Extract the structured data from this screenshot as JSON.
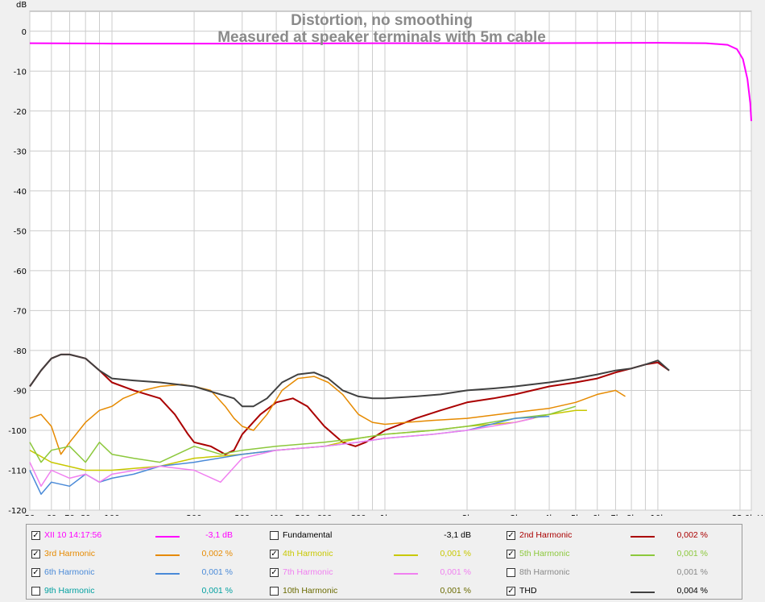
{
  "chart_data": {
    "type": "line",
    "title": "Distortion, no smoothing",
    "subtitle": "Measured at speaker terminals with 5m cable",
    "ylabel": "dB",
    "xunit": "Hz",
    "xscale": "log",
    "xlim": [
      50,
      22000
    ],
    "ylim": [
      -120,
      5
    ],
    "grid": true,
    "y_ticks": [
      {
        "v": 0,
        "label": "0"
      },
      {
        "v": -10,
        "label": "-10"
      },
      {
        "v": -20,
        "label": "-20"
      },
      {
        "v": -30,
        "label": "-30"
      },
      {
        "v": -40,
        "label": "-40"
      },
      {
        "v": -50,
        "label": "-50"
      },
      {
        "v": -60,
        "label": "-60"
      },
      {
        "v": -70,
        "label": "-70"
      },
      {
        "v": -80,
        "label": "-80"
      },
      {
        "v": -90,
        "label": "-90"
      },
      {
        "v": -100,
        "label": "-100"
      },
      {
        "v": -110,
        "label": "-110"
      },
      {
        "v": -120,
        "label": "-120"
      }
    ],
    "x_ticks": [
      {
        "v": 50,
        "label": "50"
      },
      {
        "v": 60,
        "label": "60"
      },
      {
        "v": 70,
        "label": "70"
      },
      {
        "v": 80,
        "label": "80"
      },
      {
        "v": 100,
        "label": "100"
      },
      {
        "v": 200,
        "label": "200"
      },
      {
        "v": 300,
        "label": "300"
      },
      {
        "v": 400,
        "label": "400"
      },
      {
        "v": 500,
        "label": "500"
      },
      {
        "v": 600,
        "label": "600"
      },
      {
        "v": 800,
        "label": "800"
      },
      {
        "v": 1000,
        "label": "1k"
      },
      {
        "v": 2000,
        "label": "2k"
      },
      {
        "v": 3000,
        "label": "3k"
      },
      {
        "v": 4000,
        "label": "4k"
      },
      {
        "v": 5000,
        "label": "5k"
      },
      {
        "v": 6000,
        "label": "6k"
      },
      {
        "v": 7000,
        "label": "7k"
      },
      {
        "v": 8000,
        "label": "8k"
      },
      {
        "v": 10000,
        "label": "10k"
      },
      {
        "v": 22000,
        "label": "22,0k Hz"
      }
    ],
    "minor_x": [
      90,
      900,
      9000,
      20000
    ],
    "series": [
      {
        "name": "XII 10 14:17:56",
        "color": "#ff00ff",
        "width": 2,
        "points": [
          [
            50,
            -3.0
          ],
          [
            100,
            -3.1
          ],
          [
            300,
            -3.1
          ],
          [
            1000,
            -3.0
          ],
          [
            3000,
            -3.0
          ],
          [
            10000,
            -2.9
          ],
          [
            15000,
            -3.0
          ],
          [
            18000,
            -3.4
          ],
          [
            19500,
            -4.5
          ],
          [
            20500,
            -7
          ],
          [
            21300,
            -12
          ],
          [
            21800,
            -18
          ],
          [
            22000,
            -22.5
          ]
        ]
      },
      {
        "name": "2nd Harmonic",
        "color": "#aa0000",
        "width": 2,
        "points": [
          [
            50,
            -89
          ],
          [
            55,
            -85
          ],
          [
            60,
            -82
          ],
          [
            65,
            -81
          ],
          [
            70,
            -81
          ],
          [
            80,
            -82
          ],
          [
            90,
            -85
          ],
          [
            100,
            -88
          ],
          [
            120,
            -90
          ],
          [
            150,
            -92
          ],
          [
            170,
            -96
          ],
          [
            190,
            -101
          ],
          [
            200,
            -103
          ],
          [
            230,
            -104
          ],
          [
            260,
            -106
          ],
          [
            280,
            -105
          ],
          [
            300,
            -101
          ],
          [
            350,
            -96
          ],
          [
            400,
            -93
          ],
          [
            460,
            -92
          ],
          [
            520,
            -94
          ],
          [
            600,
            -99
          ],
          [
            700,
            -103
          ],
          [
            780,
            -104
          ],
          [
            850,
            -103
          ],
          [
            1000,
            -100
          ],
          [
            1300,
            -97
          ],
          [
            1600,
            -95
          ],
          [
            2000,
            -93
          ],
          [
            2500,
            -92
          ],
          [
            3000,
            -91
          ],
          [
            4000,
            -89
          ],
          [
            5000,
            -88
          ],
          [
            6000,
            -87
          ],
          [
            7000,
            -85.5
          ],
          [
            8000,
            -84.5
          ],
          [
            9000,
            -83.5
          ],
          [
            10000,
            -83
          ],
          [
            11000,
            -85
          ]
        ]
      },
      {
        "name": "3rd Harmonic",
        "color": "#e68a00",
        "width": 1.5,
        "points": [
          [
            50,
            -97
          ],
          [
            55,
            -96
          ],
          [
            60,
            -99
          ],
          [
            65,
            -106
          ],
          [
            70,
            -103
          ],
          [
            80,
            -98
          ],
          [
            90,
            -95
          ],
          [
            100,
            -94
          ],
          [
            110,
            -92
          ],
          [
            130,
            -90
          ],
          [
            150,
            -89
          ],
          [
            180,
            -88.5
          ],
          [
            200,
            -89
          ],
          [
            230,
            -90
          ],
          [
            260,
            -94
          ],
          [
            280,
            -97
          ],
          [
            300,
            -99
          ],
          [
            330,
            -100
          ],
          [
            370,
            -96
          ],
          [
            420,
            -90
          ],
          [
            480,
            -87
          ],
          [
            550,
            -86.5
          ],
          [
            620,
            -88
          ],
          [
            700,
            -91
          ],
          [
            800,
            -96
          ],
          [
            900,
            -98
          ],
          [
            1000,
            -98.5
          ],
          [
            1200,
            -98
          ],
          [
            1500,
            -97.5
          ],
          [
            2000,
            -97
          ],
          [
            3000,
            -95.5
          ],
          [
            4000,
            -94.5
          ],
          [
            5000,
            -93
          ],
          [
            6000,
            -91
          ],
          [
            7000,
            -90
          ],
          [
            7600,
            -91.5
          ]
        ]
      },
      {
        "name": "4th Harmonic",
        "color": "#c8c800",
        "width": 1.5,
        "points": [
          [
            50,
            -105
          ],
          [
            60,
            -108
          ],
          [
            80,
            -110
          ],
          [
            100,
            -110
          ],
          [
            150,
            -109
          ],
          [
            200,
            -107
          ],
          [
            300,
            -106
          ],
          [
            400,
            -105
          ],
          [
            600,
            -104
          ],
          [
            800,
            -102
          ],
          [
            1000,
            -101
          ],
          [
            1500,
            -100
          ],
          [
            2000,
            -99
          ],
          [
            3000,
            -98
          ],
          [
            4000,
            -96
          ],
          [
            5000,
            -95
          ],
          [
            5500,
            -95
          ]
        ]
      },
      {
        "name": "5th Harmonic",
        "color": "#8cc83c",
        "width": 1.5,
        "points": [
          [
            50,
            -103
          ],
          [
            55,
            -108
          ],
          [
            60,
            -105
          ],
          [
            70,
            -104
          ],
          [
            80,
            -108
          ],
          [
            90,
            -103
          ],
          [
            100,
            -106
          ],
          [
            120,
            -107
          ],
          [
            150,
            -108
          ],
          [
            200,
            -104
          ],
          [
            250,
            -106
          ],
          [
            300,
            -105
          ],
          [
            400,
            -104
          ],
          [
            600,
            -103
          ],
          [
            800,
            -102
          ],
          [
            1000,
            -101
          ],
          [
            1500,
            -100
          ],
          [
            2000,
            -99
          ],
          [
            3000,
            -97
          ],
          [
            4000,
            -96
          ],
          [
            5000,
            -94
          ]
        ]
      },
      {
        "name": "6th Harmonic",
        "color": "#4a8ad8",
        "width": 1.5,
        "points": [
          [
            50,
            -110
          ],
          [
            55,
            -116
          ],
          [
            60,
            -113
          ],
          [
            70,
            -114
          ],
          [
            80,
            -111
          ],
          [
            90,
            -113
          ],
          [
            100,
            -112
          ],
          [
            120,
            -111
          ],
          [
            150,
            -109
          ],
          [
            200,
            -108
          ],
          [
            300,
            -106
          ],
          [
            400,
            -105
          ],
          [
            600,
            -104
          ],
          [
            800,
            -103
          ],
          [
            1000,
            -102
          ],
          [
            1500,
            -101
          ],
          [
            2000,
            -100
          ],
          [
            3000,
            -97
          ],
          [
            4000,
            -96.5
          ]
        ]
      },
      {
        "name": "7th Harmonic",
        "color": "#f080f0",
        "width": 1.5,
        "points": [
          [
            50,
            -108
          ],
          [
            55,
            -114
          ],
          [
            60,
            -110
          ],
          [
            70,
            -112
          ],
          [
            80,
            -111
          ],
          [
            90,
            -113
          ],
          [
            100,
            -111
          ],
          [
            150,
            -109
          ],
          [
            200,
            -110
          ],
          [
            250,
            -113
          ],
          [
            300,
            -107
          ],
          [
            400,
            -105
          ],
          [
            600,
            -104
          ],
          [
            800,
            -103
          ],
          [
            1000,
            -102
          ],
          [
            1500,
            -101
          ],
          [
            2000,
            -100
          ],
          [
            3000,
            -98
          ],
          [
            3500,
            -97
          ]
        ]
      },
      {
        "name": "THD",
        "color": "#404040",
        "width": 2,
        "points": [
          [
            50,
            -89
          ],
          [
            55,
            -85
          ],
          [
            60,
            -82
          ],
          [
            65,
            -81
          ],
          [
            70,
            -81
          ],
          [
            80,
            -82
          ],
          [
            90,
            -85
          ],
          [
            100,
            -87
          ],
          [
            120,
            -87.5
          ],
          [
            150,
            -88
          ],
          [
            200,
            -89
          ],
          [
            250,
            -91
          ],
          [
            280,
            -92
          ],
          [
            300,
            -94
          ],
          [
            330,
            -94
          ],
          [
            370,
            -92
          ],
          [
            420,
            -88
          ],
          [
            480,
            -86
          ],
          [
            550,
            -85.5
          ],
          [
            620,
            -87
          ],
          [
            700,
            -90
          ],
          [
            800,
            -91.5
          ],
          [
            900,
            -92
          ],
          [
            1000,
            -92
          ],
          [
            1300,
            -91.5
          ],
          [
            1600,
            -91
          ],
          [
            2000,
            -90
          ],
          [
            2500,
            -89.5
          ],
          [
            3000,
            -89
          ],
          [
            4000,
            -88
          ],
          [
            5000,
            -87
          ],
          [
            6000,
            -86
          ],
          [
            7000,
            -85
          ],
          [
            8000,
            -84.5
          ],
          [
            9000,
            -83.5
          ],
          [
            10000,
            -82.5
          ],
          [
            11000,
            -85
          ]
        ]
      }
    ]
  },
  "legend": {
    "rows": [
      [
        {
          "checked": true,
          "label": "XII 10 14:17:56",
          "color": "#ff00ff",
          "value": "-3,1 dB",
          "swatch": true
        },
        {
          "checked": false,
          "label": "Fundamental",
          "color": "#000000",
          "value": "-3,1 dB",
          "swatch": false
        },
        {
          "checked": true,
          "label": "2nd Harmonic",
          "color": "#aa0000",
          "value": "0,002 %",
          "swatch": true
        }
      ],
      [
        {
          "checked": true,
          "label": "3rd Harmonic",
          "color": "#e68a00",
          "value": "0,002 %",
          "swatch": true
        },
        {
          "checked": true,
          "label": "4th Harmonic",
          "color": "#c8c800",
          "value": "0,001 %",
          "swatch": true
        },
        {
          "checked": true,
          "label": "5th Harmonic",
          "color": "#8cc83c",
          "value": "0,001 %",
          "swatch": true
        }
      ],
      [
        {
          "checked": true,
          "label": "6th Harmonic",
          "color": "#4a8ad8",
          "value": "0,001 %",
          "swatch": true
        },
        {
          "checked": true,
          "label": "7th Harmonic",
          "color": "#f080f0",
          "value": "0,001 %",
          "swatch": true
        },
        {
          "checked": false,
          "label": "8th Harmonic",
          "color": "#888888",
          "value": "0,001 %",
          "swatch": false
        }
      ],
      [
        {
          "checked": false,
          "label": "9th Harmonic",
          "color": "#00a0a0",
          "value": "0,001 %",
          "swatch": false
        },
        {
          "checked": false,
          "label": "10th Harmonic",
          "color": "#6a6a00",
          "value": "0,001 %",
          "swatch": false
        },
        {
          "checked": true,
          "label": "THD",
          "color": "#000000",
          "value": "0,004 %",
          "swatch": true,
          "swatch_color": "#404040"
        }
      ]
    ]
  }
}
